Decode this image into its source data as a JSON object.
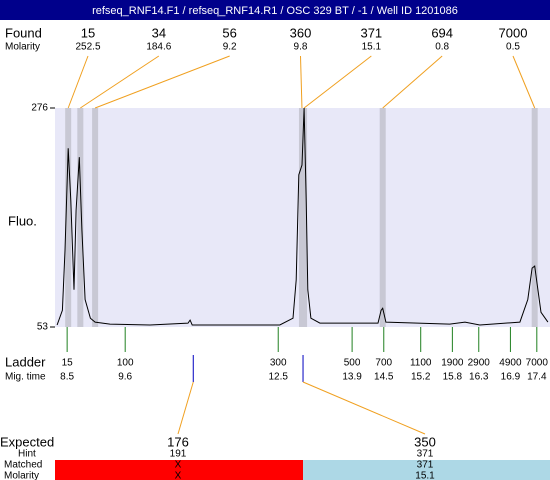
{
  "chart_data": {
    "type": "line",
    "title": "refseq_RNF14.F1 / refseq_RNF14.R1 / OSC 329 BT / -1 / Well ID 1201086",
    "ylabel": "Fluo.",
    "xlim": [
      8.27,
      17.65
    ],
    "ylim": [
      53,
      276
    ],
    "yticks": [
      276,
      53
    ],
    "series": [
      {
        "color": "#000000",
        "x": [
          8.31,
          8.41,
          8.46,
          8.52,
          8.57,
          8.63,
          8.67,
          8.73,
          8.78,
          8.84,
          8.94,
          9.03,
          9.31,
          10.07,
          10.79,
          10.83,
          10.87,
          12.53,
          12.78,
          12.84,
          12.89,
          12.95,
          12.99,
          13.03,
          13.06,
          13.12,
          13.29,
          14.39,
          14.45,
          14.48,
          14.54,
          15.75,
          16.04,
          16.32,
          17.08,
          17.23,
          17.31,
          17.36,
          17.42,
          17.48,
          17.61
        ],
        "values": [
          55,
          70,
          131,
          235,
          182,
          91,
          172,
          226,
          152,
          81,
          62,
          58,
          56,
          55,
          57,
          60,
          55,
          55,
          62,
          101,
          208,
          218,
          276,
          182,
          91,
          62,
          57,
          57,
          70,
          72,
          58,
          56,
          58,
          55,
          58,
          81,
          113,
          115,
          91,
          68,
          58
        ]
      }
    ],
    "found": {
      "label": "Found",
      "molarity_label": "Molarity",
      "sizes": [
        15,
        34,
        56,
        360,
        371,
        694,
        7000
      ],
      "molarity": [
        252.5,
        184.6,
        9.2,
        9.8,
        15.1,
        0.8,
        0.5
      ],
      "times": [
        8.52,
        8.75,
        9.03,
        12.95,
        12.99,
        14.48,
        17.36
      ]
    },
    "ladder": {
      "label": "Ladder",
      "time_label": "Mig. time",
      "sizes": [
        15,
        100,
        300,
        500,
        700,
        1100,
        1900,
        2900,
        4900,
        7000
      ],
      "times": [
        8.5,
        9.6,
        12.5,
        13.9,
        14.5,
        15.2,
        15.8,
        16.3,
        16.9,
        17.4
      ]
    },
    "expected": {
      "label": "Expected",
      "hint_label": "Hint",
      "matched_label": "Matched",
      "molarity_label": "Molarity",
      "sizes": [
        176,
        350
      ],
      "hint": [
        191,
        371
      ],
      "matched": [
        "X",
        371
      ],
      "molarity": [
        "X",
        15.1
      ],
      "times": [
        10.89,
        12.97
      ]
    }
  }
}
